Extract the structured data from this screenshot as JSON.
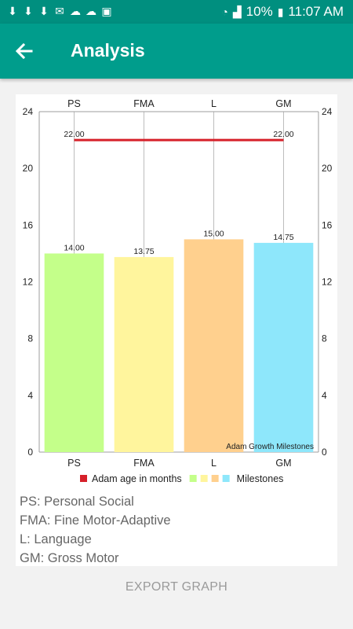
{
  "status_bar": {
    "left_icons": [
      "download-icon",
      "download-icon",
      "download-icon",
      "mail-icon",
      "cloud-icon",
      "cloud-icon",
      "clipboard-icon"
    ],
    "battery": "10%",
    "time": "11:07 AM"
  },
  "app_bar": {
    "title": "Analysis",
    "background": "#009d8c",
    "back_icon": "arrow-left-icon"
  },
  "chart_data": {
    "type": "bar",
    "categories": [
      "PS",
      "FMA",
      "L",
      "GM"
    ],
    "values": [
      14.0,
      13.75,
      15.0,
      14.75
    ],
    "value_labels": [
      "14.00",
      "13.75",
      "15.00",
      "14.75"
    ],
    "bar_colors": [
      "#c4ff8a",
      "#fff59d",
      "#ffd08e",
      "#8ee7fb"
    ],
    "line_series": {
      "name": "Adam age in months",
      "color": "#d6202a",
      "points": [
        {
          "x": "PS",
          "y": 22.0
        },
        {
          "x": "GM",
          "y": 22.0
        }
      ],
      "labels": [
        "22.00",
        "22.00"
      ]
    },
    "ylim": [
      0,
      24
    ],
    "yticks": [
      "0",
      "4",
      "8",
      "12",
      "16",
      "20",
      "24"
    ],
    "description": "Adam Growth Milestones",
    "legend": [
      {
        "label": "Adam age in months",
        "colors": [
          "#d6202a"
        ]
      },
      {
        "label": "Milestones",
        "colors": [
          "#c4ff8a",
          "#fff59d",
          "#ffd08e",
          "#8ee7fb"
        ]
      }
    ],
    "legend_position": "bottom-center",
    "grid": "vertical"
  },
  "abbreviations": [
    "PS: Personal Social",
    "FMA: Fine Motor-Adaptive",
    "L: Language",
    "GM: Gross Motor"
  ],
  "export_label": "EXPORT GRAPH"
}
